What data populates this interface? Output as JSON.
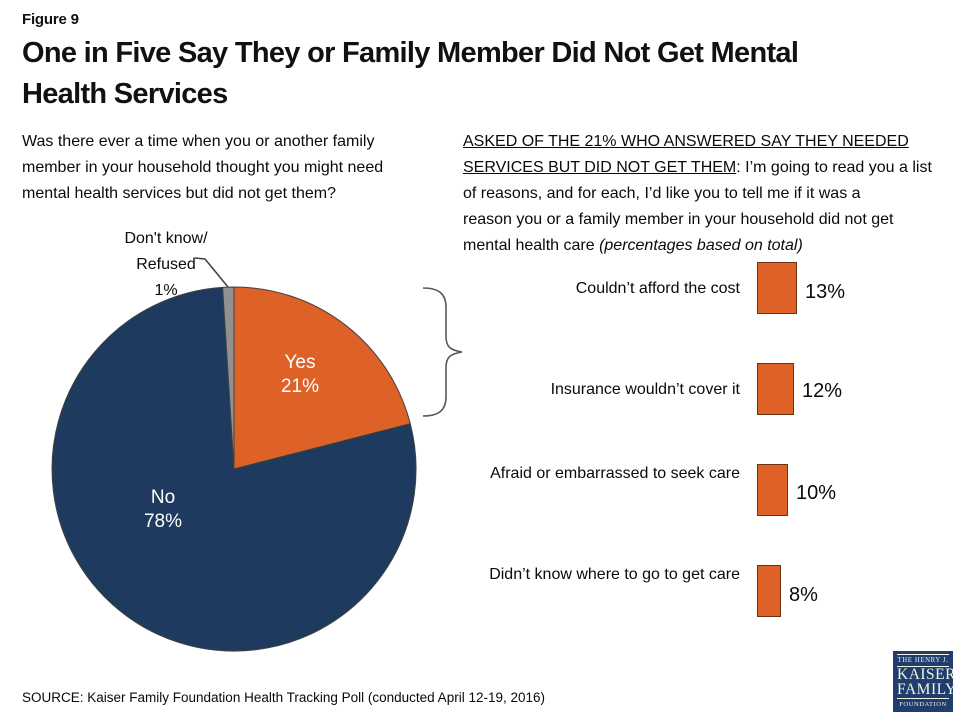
{
  "figure_label": "Figure 9",
  "title": {
    "lines": [
      "One in Five Say They or Family Member Did Not Get Mental",
      "Health Services"
    ]
  },
  "question": {
    "lines": [
      "Was there ever a time when you or another family",
      "member in your household thought you might need",
      "mental health services but did not get them?"
    ]
  },
  "prompt": {
    "line1_underline": "ASKED OF THE 21% WHO ANSWERED SAY THEY NEEDED",
    "line2_underline": "SERVICES BUT DID NOT GET THEM",
    "line2_rest": ": I’m going to read you a list",
    "line3": "of reasons, and for each, I’d like you to tell me if it was a",
    "line4": "reason you or a family member in your household did not get",
    "line5_normal": "mental health care ",
    "line5_italic": "(percentages based on total)"
  },
  "chart_data": [
    {
      "type": "pie",
      "slices": [
        {
          "label": "Yes",
          "value": 21
        },
        {
          "label": "No",
          "value": 78
        },
        {
          "label": "Don't know/Refused",
          "value": 1
        }
      ],
      "colors": [
        "#de6227",
        "#1e3a5e",
        "#919191"
      ],
      "start_angle": "top",
      "direction": "clockwise",
      "legend_position": "inside-and-callout"
    },
    {
      "type": "bar",
      "orientation": "horizontal",
      "categories": [
        "Couldn’t afford the cost",
        "Insurance wouldn’t cover it",
        "Afraid or embarrassed to seek care",
        "Didn’t know where to go to get care"
      ],
      "values": [
        13,
        12,
        10,
        8
      ],
      "value_labels": [
        "13%",
        "12%",
        "10%",
        "8%"
      ],
      "xlim": [
        0,
        100
      ],
      "bar_color": "#de6227",
      "grid": false,
      "note": "percentages based on total"
    }
  ],
  "pie_display": {
    "yes": [
      "Yes",
      "21%"
    ],
    "no": [
      "No",
      "78%"
    ],
    "dk": [
      "Don't know/",
      "Refused",
      "1%"
    ]
  },
  "source": "SOURCE: Kaiser Family Foundation Health Tracking Poll (conducted April 12-19, 2016)",
  "logo": {
    "line1": "THE HENRY J.",
    "line2": "KAISER",
    "line3": "FAMILY",
    "line4": "FOUNDATION"
  },
  "colors": {
    "orange": "#de6227",
    "navy": "#1e3a5e",
    "gray": "#919191",
    "outline": "#404040",
    "logo_navy": "#1f3e6d"
  }
}
